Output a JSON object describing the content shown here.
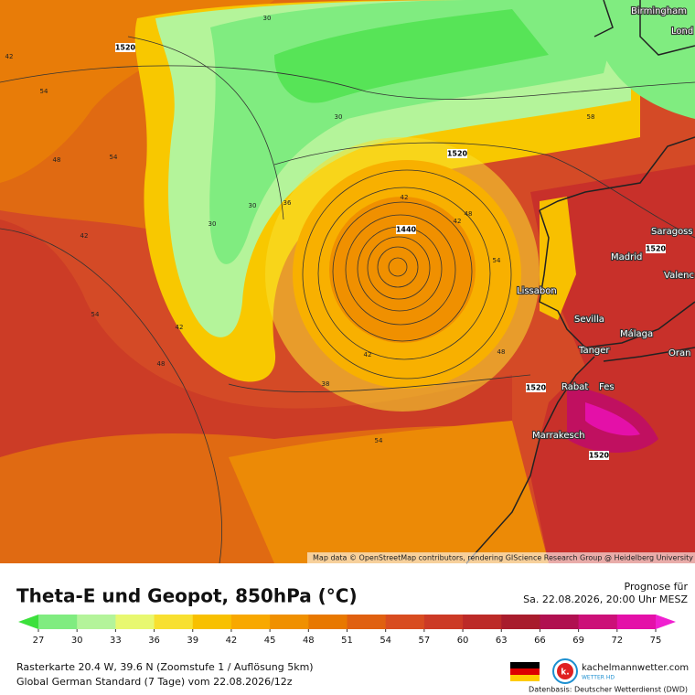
{
  "title": "Theta-E und Geopot, 850hPa (°C)",
  "forecast": {
    "label": "Prognose für",
    "time": "Sa. 22.08.2026, 20:00 Uhr MESZ"
  },
  "info": [
    "Rasterkarte 20.4 W, 39.6 N (Zoomstufe 1 / Auflösung 5km)",
    "Global German Standard (7 Tage) vom 22.08.2026/12z"
  ],
  "brand": {
    "name": "kachelmannwetter.com",
    "sub": "WETTER HD",
    "logo": "k.",
    "source": "Datenbasis: Deutscher Wetterdienst (DWD)"
  },
  "attribution": "Map data © OpenStreetMap contributors, rendering GIScience Research Group @ Heidelberg University",
  "colorbar": {
    "ticks": [
      27,
      30,
      33,
      36,
      39,
      42,
      45,
      48,
      51,
      54,
      57,
      60,
      63,
      66,
      69,
      72,
      75
    ],
    "colors": [
      "#3ce03c",
      "#80ec80",
      "#b4f49a",
      "#e8f870",
      "#f8e030",
      "#f8c000",
      "#f8a800",
      "#f09000",
      "#e87800",
      "#e06010",
      "#d84c20",
      "#cc3a26",
      "#bc2a28",
      "#a81c2c",
      "#b01050",
      "#cc1078",
      "#e410a8",
      "#f020d0"
    ]
  },
  "cities": [
    "Birmingham",
    "Lond",
    "Saragoss",
    "Madrid",
    "Valenc",
    "Lissabon",
    "Sevilla",
    "Málaga",
    "Tanger",
    "Oran",
    "Rabat",
    "Fes",
    "Marrakesch"
  ],
  "contour_labels": [
    "1440",
    "1520",
    "1520",
    "1520",
    "1520",
    "1520"
  ],
  "isotherm_labels": [
    "42",
    "54",
    "42",
    "48",
    "30",
    "36",
    "42",
    "42",
    "48",
    "54",
    "42",
    "54",
    "48",
    "54",
    "30",
    "30",
    "38",
    "42",
    "48",
    "54",
    "58",
    "30"
  ]
}
